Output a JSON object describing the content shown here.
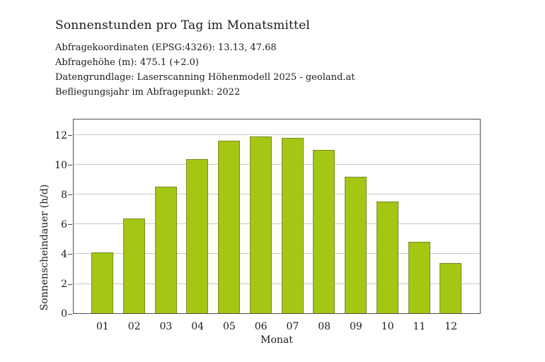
{
  "page": {
    "background": "#ffffff"
  },
  "header": {
    "title": "Sonnenstunden pro Tag im Monatsmittel",
    "meta_lines": [
      "Abfragekoordinaten (EPSG:4326): 13.13, 47.68",
      "Abfragehöhe (m): 475.1 (+2.0)",
      "Datengrundlage: Laserscanning Höhenmodell 2025 - geoland.at",
      "Befliegungsjahr im Abfragepunkt: 2022"
    ]
  },
  "chart_data": {
    "type": "bar",
    "title": "Sonnenstunden pro Tag im Monatsmittel",
    "categories": [
      "01",
      "02",
      "03",
      "04",
      "05",
      "06",
      "07",
      "08",
      "09",
      "10",
      "11",
      "12"
    ],
    "values": [
      4.1,
      6.4,
      8.5,
      10.4,
      11.6,
      11.9,
      11.8,
      11.0,
      9.2,
      7.5,
      4.8,
      3.4
    ],
    "xlabel": "Monat",
    "ylabel": "Sonnenscheindauer (h/d)",
    "ylim": [
      0,
      13.14
    ],
    "yticks": [
      0,
      2,
      4,
      6,
      8,
      10,
      12
    ],
    "grid": true,
    "legend": false,
    "bar_color": "#a4c713",
    "grid_color": "#c9c9c9",
    "frame_color": "#4d4d4d",
    "text_color": "#1a1a1a"
  }
}
